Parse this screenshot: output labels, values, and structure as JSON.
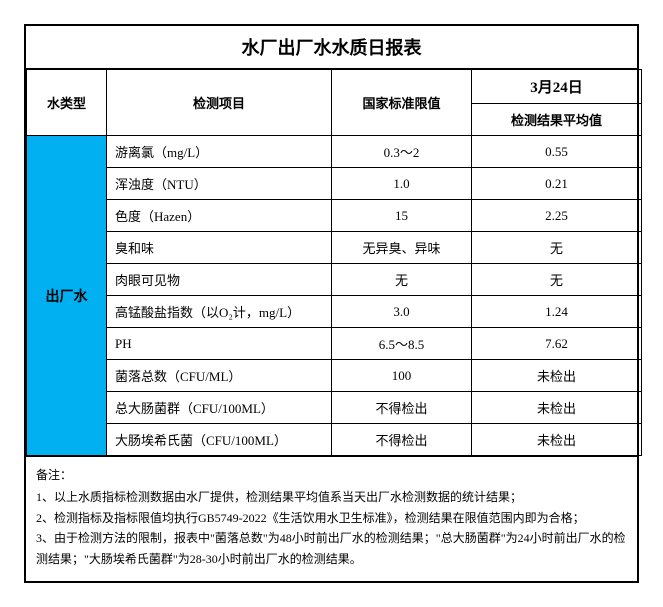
{
  "title": "水厂出厂水水质日报表",
  "headers": {
    "type": "水类型",
    "item": "检测项目",
    "limit": "国家标准限值",
    "date": "3月24日",
    "result": "检测结果平均值"
  },
  "typeLabel": "出厂水",
  "typeBgColor": "#00b0f0",
  "rows": [
    {
      "item": "游离氯（mg/L）",
      "limit": "0.3～2",
      "result": "0.55"
    },
    {
      "item": "浑浊度（NTU）",
      "limit": "1.0",
      "result": "0.21"
    },
    {
      "item": "色度（Hazen）",
      "limit": "15",
      "result": "2.25"
    },
    {
      "item": "臭和味",
      "limit": "无异臭、异味",
      "result": "无"
    },
    {
      "item": "肉眼可见物",
      "limit": "无",
      "result": "无"
    },
    {
      "item": "高锰酸盐指数（以O₂计，mg/L）",
      "limit": "3.0",
      "result": "1.24"
    },
    {
      "item": "PH",
      "limit": "6.5～8.5",
      "result": "7.62"
    },
    {
      "item": "菌落总数（CFU/ML）",
      "limit": "100",
      "result": "未检出"
    },
    {
      "item": "总大肠菌群（CFU/100ML）",
      "limit": "不得检出",
      "result": "未检出"
    },
    {
      "item": "大肠埃希氏菌（CFU/100ML）",
      "limit": "不得检出",
      "result": "未检出"
    }
  ],
  "notes": {
    "title": "备注：",
    "lines": [
      "1、以上水质指标检测数据由水厂提供，检测结果平均值系当天出厂水检测数据的统计结果；",
      "2、检测指标及指标限值均执行GB5749-2022《生活饮用水卫生标准》，检测结果在限值范围内即为合格；",
      "3、由于检测方法的限制，报表中\"菌落总数\"为48小时前出厂水的检测结果；\"总大肠菌群\"为24小时前出厂水的检测结果；\"大肠埃希氏菌群\"为28-30小时前出厂水的检测结果。"
    ]
  }
}
